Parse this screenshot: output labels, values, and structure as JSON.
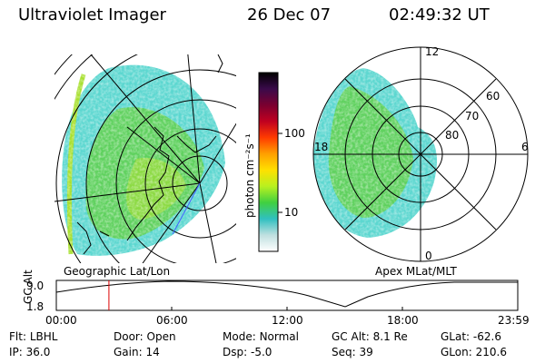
{
  "header": {
    "instrument": "Ultraviolet Imager",
    "date": "26 Dec 07",
    "time": "02:49:32 UT"
  },
  "colors": {
    "aurora_low": "#c8ddd8",
    "aurora_mid": "#3fd0c8",
    "aurora_high": "#5fd04a",
    "aurora_peak": "#a8e030",
    "marker": "#dd0000"
  },
  "left_map": {
    "label": "Geographic Lat/Lon"
  },
  "right_map": {
    "label": "Apex MLat/MLT",
    "mlt_labels": [
      "12",
      "18",
      "6",
      "0"
    ],
    "lat_labels": [
      "60",
      "70",
      "80"
    ]
  },
  "colorbar": {
    "unit_label": "photon cm⁻²s⁻¹",
    "tick_labels": [
      "100",
      "10"
    ],
    "stops": [
      "#000000",
      "#3a0a4a",
      "#7a0030",
      "#c00020",
      "#ff3b00",
      "#ffa000",
      "#ffe000",
      "#b8f020",
      "#40d040",
      "#30c0c0",
      "#c0e0e0",
      "#ffffff"
    ]
  },
  "alt_plot": {
    "axis_label": "GC Alt",
    "y_ticks": [
      "9.0",
      "1.8"
    ],
    "x_ticks": [
      "00:00",
      "06:00",
      "12:00",
      "18:00",
      "23:59"
    ],
    "current_time_fraction": 0.114
  },
  "info": {
    "row1": [
      {
        "label": "Flt:",
        "value": "LBHL"
      },
      {
        "label": "Door:",
        "value": "Open"
      },
      {
        "label": "Mode:",
        "value": "Normal"
      },
      {
        "label": "GC Alt:",
        "value": "8.1 Re"
      },
      {
        "label": "GLat:",
        "value": "-62.6"
      }
    ],
    "row2": [
      {
        "label": "IP:",
        "value": "36.0"
      },
      {
        "label": "Gain:",
        "value": "14"
      },
      {
        "label": "Dsp:",
        "value": "-5.0"
      },
      {
        "label": "Seq:",
        "value": "39"
      },
      {
        "label": "GLon:",
        "value": "210.6"
      }
    ]
  }
}
